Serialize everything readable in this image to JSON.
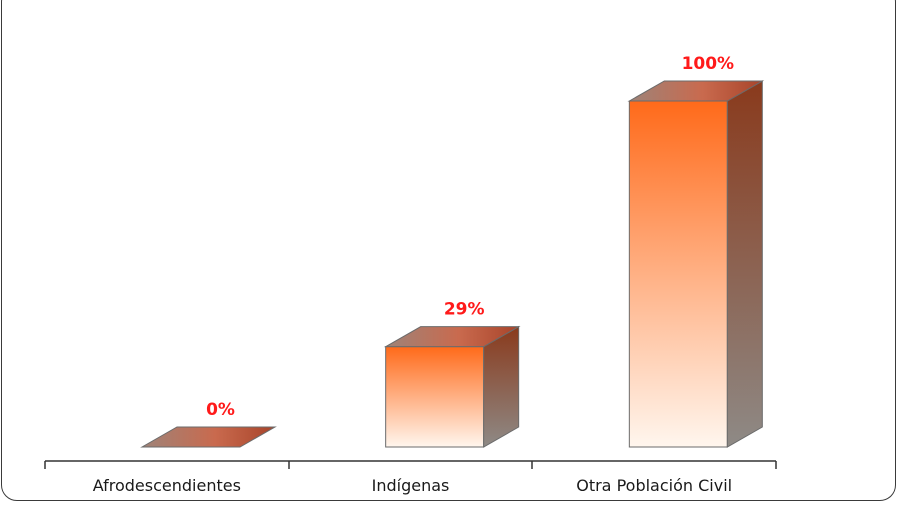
{
  "chart_data": {
    "type": "bar",
    "style": "3d-column",
    "categories": [
      "Afrodescendientes",
      "Indígenas",
      "Otra Población Civil"
    ],
    "values": [
      0,
      29,
      100
    ],
    "data_labels": [
      "0%",
      "29%",
      "100%"
    ],
    "unit": "%",
    "ylim": [
      0,
      100
    ],
    "grid": false,
    "legend": "none",
    "colors": {
      "front_top": "#ff6a1a",
      "front_bottom": "#fff6ee",
      "side_top": "#8a3a1c",
      "side_bottom": "#8e8a86",
      "top_face": "#c96a4e",
      "label": "#ff1a1a"
    }
  }
}
